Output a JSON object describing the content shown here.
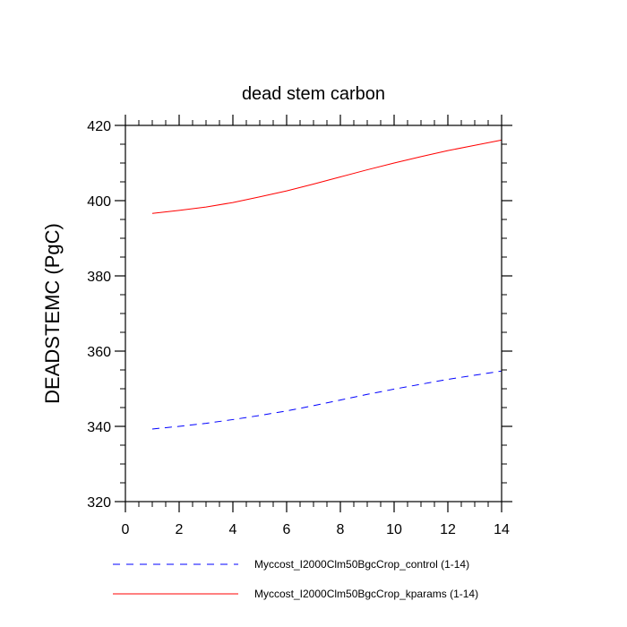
{
  "chart_data": {
    "type": "line",
    "title": "dead stem carbon",
    "xlabel": "",
    "ylabel": "DEADSTEMC  (PgC)",
    "xlim": [
      0,
      14
    ],
    "ylim": [
      320,
      420
    ],
    "x_ticks": [
      0,
      2,
      4,
      6,
      8,
      10,
      12,
      14
    ],
    "y_ticks": [
      320,
      340,
      360,
      380,
      400,
      420
    ],
    "x_tick_labels": [
      "0",
      "2",
      "4",
      "6",
      "8",
      "10",
      "12",
      "14"
    ],
    "y_tick_labels": [
      "320",
      "340",
      "360",
      "380",
      "400",
      "420"
    ],
    "grid": false,
    "legend_position": "bottom",
    "series": [
      {
        "name": "Myccost_I2000Clm50BgcCrop_control (1-14)",
        "color": "#0000ff",
        "line_style": "dashed",
        "x": [
          1,
          2,
          3,
          4,
          5,
          6,
          7,
          8,
          9,
          10,
          11,
          12,
          13,
          14
        ],
        "values": [
          339.3,
          340.0,
          340.8,
          341.8,
          342.9,
          344.1,
          345.5,
          347.0,
          348.5,
          349.9,
          351.2,
          352.5,
          353.6,
          354.7
        ]
      },
      {
        "name": "Myccost_I2000Clm50BgcCrop_kparams (1-14)",
        "color": "#ff0000",
        "line_style": "solid",
        "x": [
          1,
          2,
          3,
          4,
          5,
          6,
          7,
          8,
          9,
          10,
          11,
          12,
          13,
          14
        ],
        "values": [
          396.6,
          397.4,
          398.3,
          399.5,
          401.0,
          402.6,
          404.4,
          406.3,
          408.2,
          410.0,
          411.7,
          413.3,
          414.7,
          416.1
        ]
      }
    ]
  }
}
